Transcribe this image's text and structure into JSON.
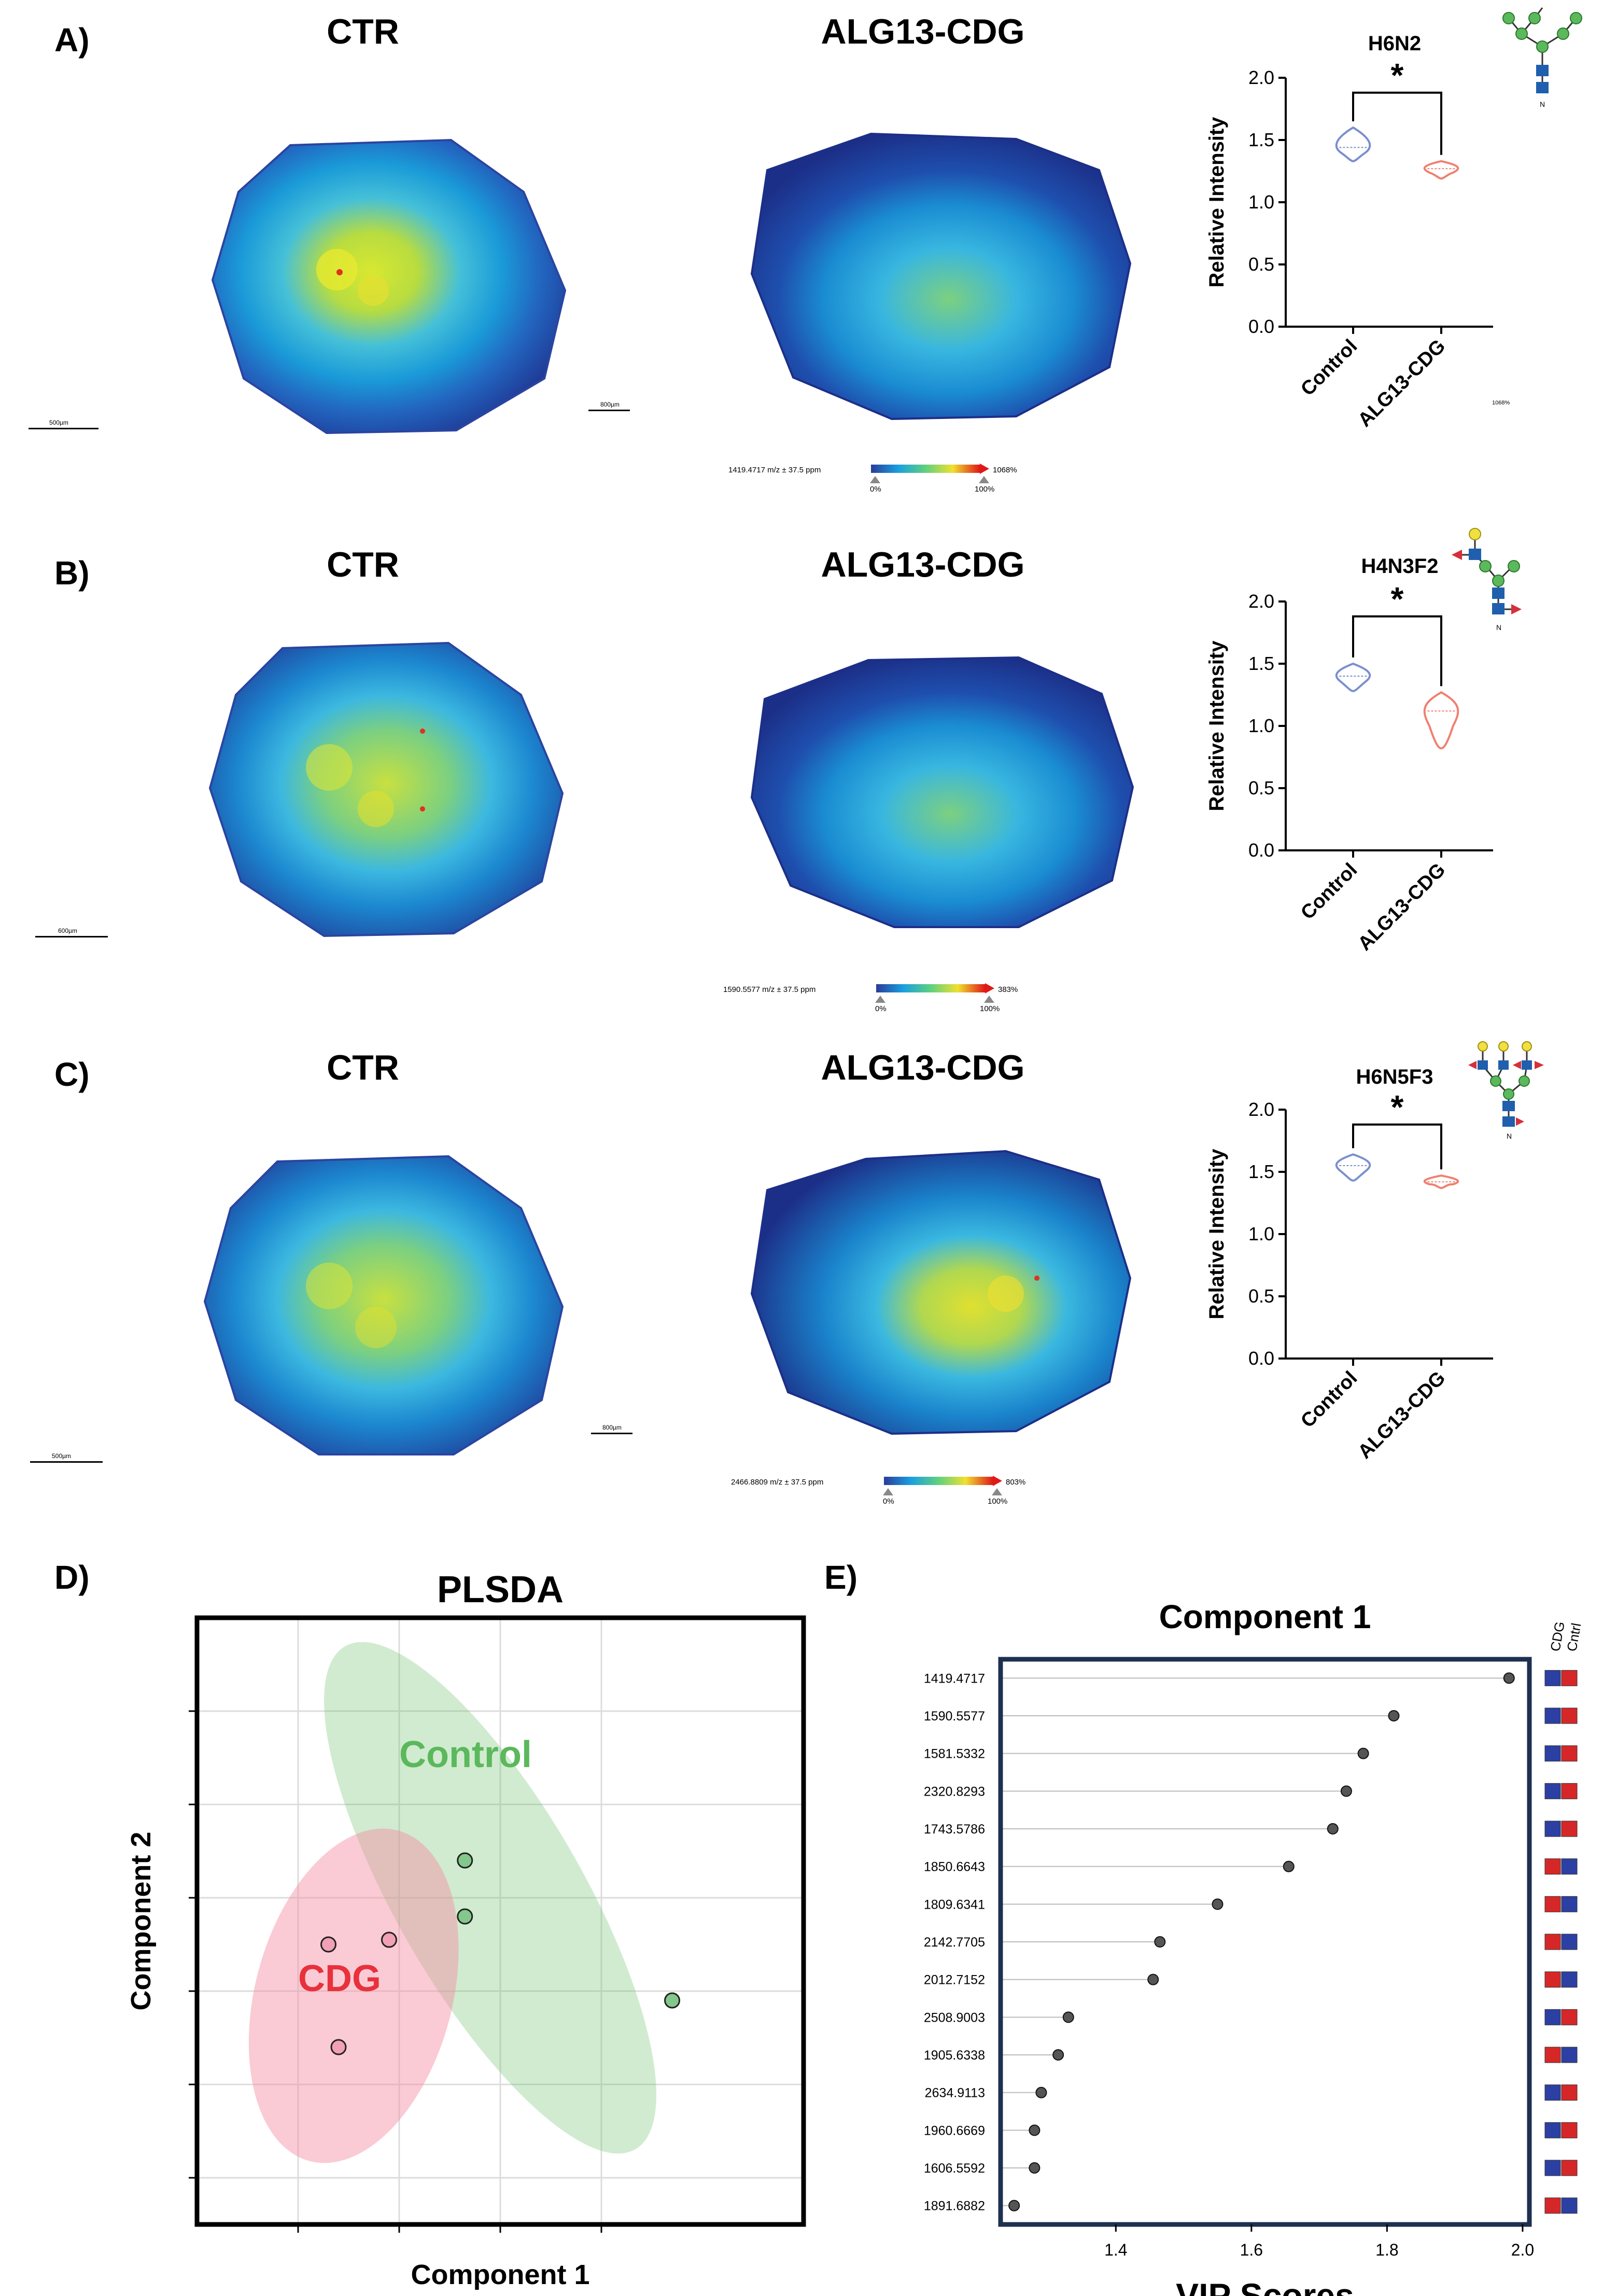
{
  "panels": [
    {
      "letter": "A)",
      "ctr_title": "CTR",
      "cdg_title": "ALG13-CDG",
      "glycan": "H6N2",
      "colorbar": {
        "label": "1419.4717 m/z ± 37.5 ppm",
        "max": "1068%",
        "low": "0%",
        "high": "100%"
      },
      "scalebar_label": "500µm",
      "scalebar_label_2": "800µm",
      "tiny_note": "1068%",
      "chart_data": {
        "type": "violin",
        "categories": [
          "Control",
          "ALG13-CDG"
        ],
        "ylabel": "Relative Intensity",
        "ylim": [
          0,
          2.0
        ],
        "yticks": [
          "0.0",
          "0.5",
          "1.0",
          "1.5",
          "2.0"
        ],
        "series": [
          {
            "name": "Control",
            "center": 1.44,
            "min": 1.33,
            "max": 1.6
          },
          {
            "name": "ALG13-CDG",
            "center": 1.27,
            "min": 1.19,
            "max": 1.33
          }
        ],
        "significance": "*"
      }
    },
    {
      "letter": "B)",
      "ctr_title": "CTR",
      "cdg_title": "ALG13-CDG",
      "glycan": "H4N3F2",
      "colorbar": {
        "label": "1590.5577 m/z ± 37.5 ppm",
        "max": "383%",
        "low": "0%",
        "high": "100%"
      },
      "scalebar_label": "600µm",
      "chart_data": {
        "type": "violin",
        "categories": [
          "Control",
          "ALG13-CDG"
        ],
        "ylabel": "Relative Intensity",
        "ylim": [
          0,
          2.0
        ],
        "yticks": [
          "0.0",
          "0.5",
          "1.0",
          "1.5",
          "2.0"
        ],
        "series": [
          {
            "name": "Control",
            "center": 1.4,
            "min": 1.28,
            "max": 1.5
          },
          {
            "name": "ALG13-CDG",
            "center": 1.12,
            "min": 0.82,
            "max": 1.27
          }
        ],
        "significance": "*"
      }
    },
    {
      "letter": "C)",
      "ctr_title": "CTR",
      "cdg_title": "ALG13-CDG",
      "glycan": "H6N5F3",
      "colorbar": {
        "label": "2466.8809 m/z ± 37.5 ppm",
        "max": "803%",
        "low": "0%",
        "high": "100%"
      },
      "scalebar_label": "500µm",
      "scalebar_label_2": "800µm",
      "chart_data": {
        "type": "violin",
        "categories": [
          "Control",
          "ALG13-CDG"
        ],
        "ylabel": "Relative Intensity",
        "ylim": [
          0,
          2.0
        ],
        "yticks": [
          "0.0",
          "0.5",
          "1.0",
          "1.5",
          "2.0"
        ],
        "series": [
          {
            "name": "Control",
            "center": 1.55,
            "min": 1.43,
            "max": 1.64
          },
          {
            "name": "ALG13-CDG",
            "center": 1.42,
            "min": 1.37,
            "max": 1.47
          }
        ],
        "significance": "*"
      }
    }
  ],
  "plsda": {
    "letter": "D)",
    "title": "PLSDA",
    "xlabel": "Component 1",
    "ylabel": "Component 2",
    "group_control": "Control",
    "group_cdg": "CDG",
    "colors": {
      "control": "#6fc06f",
      "cdg": "#e8313c"
    },
    "chart_data": {
      "type": "scatter",
      "xlim": [
        -2.5,
        3.5
      ],
      "ylim": [
        -3,
        3.5
      ],
      "series": [
        {
          "name": "Control",
          "points": [
            [
              0.15,
              0.9
            ],
            [
              0.15,
              0.3
            ],
            [
              2.2,
              -0.6
            ]
          ]
        },
        {
          "name": "CDG",
          "points": [
            [
              -1.2,
              0.0
            ],
            [
              -0.6,
              0.05
            ],
            [
              -1.1,
              -1.1
            ]
          ]
        }
      ]
    }
  },
  "vip": {
    "letter": "E)",
    "title": "Component 1",
    "xlabel": "VIP Scores",
    "legend_cdg": "CDG",
    "legend_cntrl": "Cntrl",
    "colors": {
      "high": "#d62728",
      "low": "#2c3fa3"
    },
    "chart_data": {
      "type": "dot",
      "xlim": [
        1.23,
        2.01
      ],
      "xticks": [
        "1.4",
        "1.6",
        "1.8",
        "2.0"
      ],
      "items": [
        {
          "label": "1419.4717",
          "value": 1.98,
          "cdg": "low",
          "cntrl": "high"
        },
        {
          "label": "1590.5577",
          "value": 1.81,
          "cdg": "low",
          "cntrl": "high"
        },
        {
          "label": "1581.5332",
          "value": 1.765,
          "cdg": "low",
          "cntrl": "high"
        },
        {
          "label": "2320.8293",
          "value": 1.74,
          "cdg": "low",
          "cntrl": "high"
        },
        {
          "label": "1743.5786",
          "value": 1.72,
          "cdg": "low",
          "cntrl": "high"
        },
        {
          "label": "1850.6643",
          "value": 1.655,
          "cdg": "high",
          "cntrl": "low"
        },
        {
          "label": "1809.6341",
          "value": 1.55,
          "cdg": "high",
          "cntrl": "low"
        },
        {
          "label": "2142.7705",
          "value": 1.465,
          "cdg": "high",
          "cntrl": "low"
        },
        {
          "label": "2012.7152",
          "value": 1.455,
          "cdg": "high",
          "cntrl": "low"
        },
        {
          "label": "2508.9003",
          "value": 1.33,
          "cdg": "low",
          "cntrl": "high"
        },
        {
          "label": "1905.6338",
          "value": 1.315,
          "cdg": "high",
          "cntrl": "low"
        },
        {
          "label": "2634.9113",
          "value": 1.29,
          "cdg": "low",
          "cntrl": "high"
        },
        {
          "label": "1960.6669",
          "value": 1.28,
          "cdg": "low",
          "cntrl": "high"
        },
        {
          "label": "1606.5592",
          "value": 1.28,
          "cdg": "low",
          "cntrl": "high"
        },
        {
          "label": "1891.6882",
          "value": 1.25,
          "cdg": "high",
          "cntrl": "low"
        }
      ]
    }
  }
}
